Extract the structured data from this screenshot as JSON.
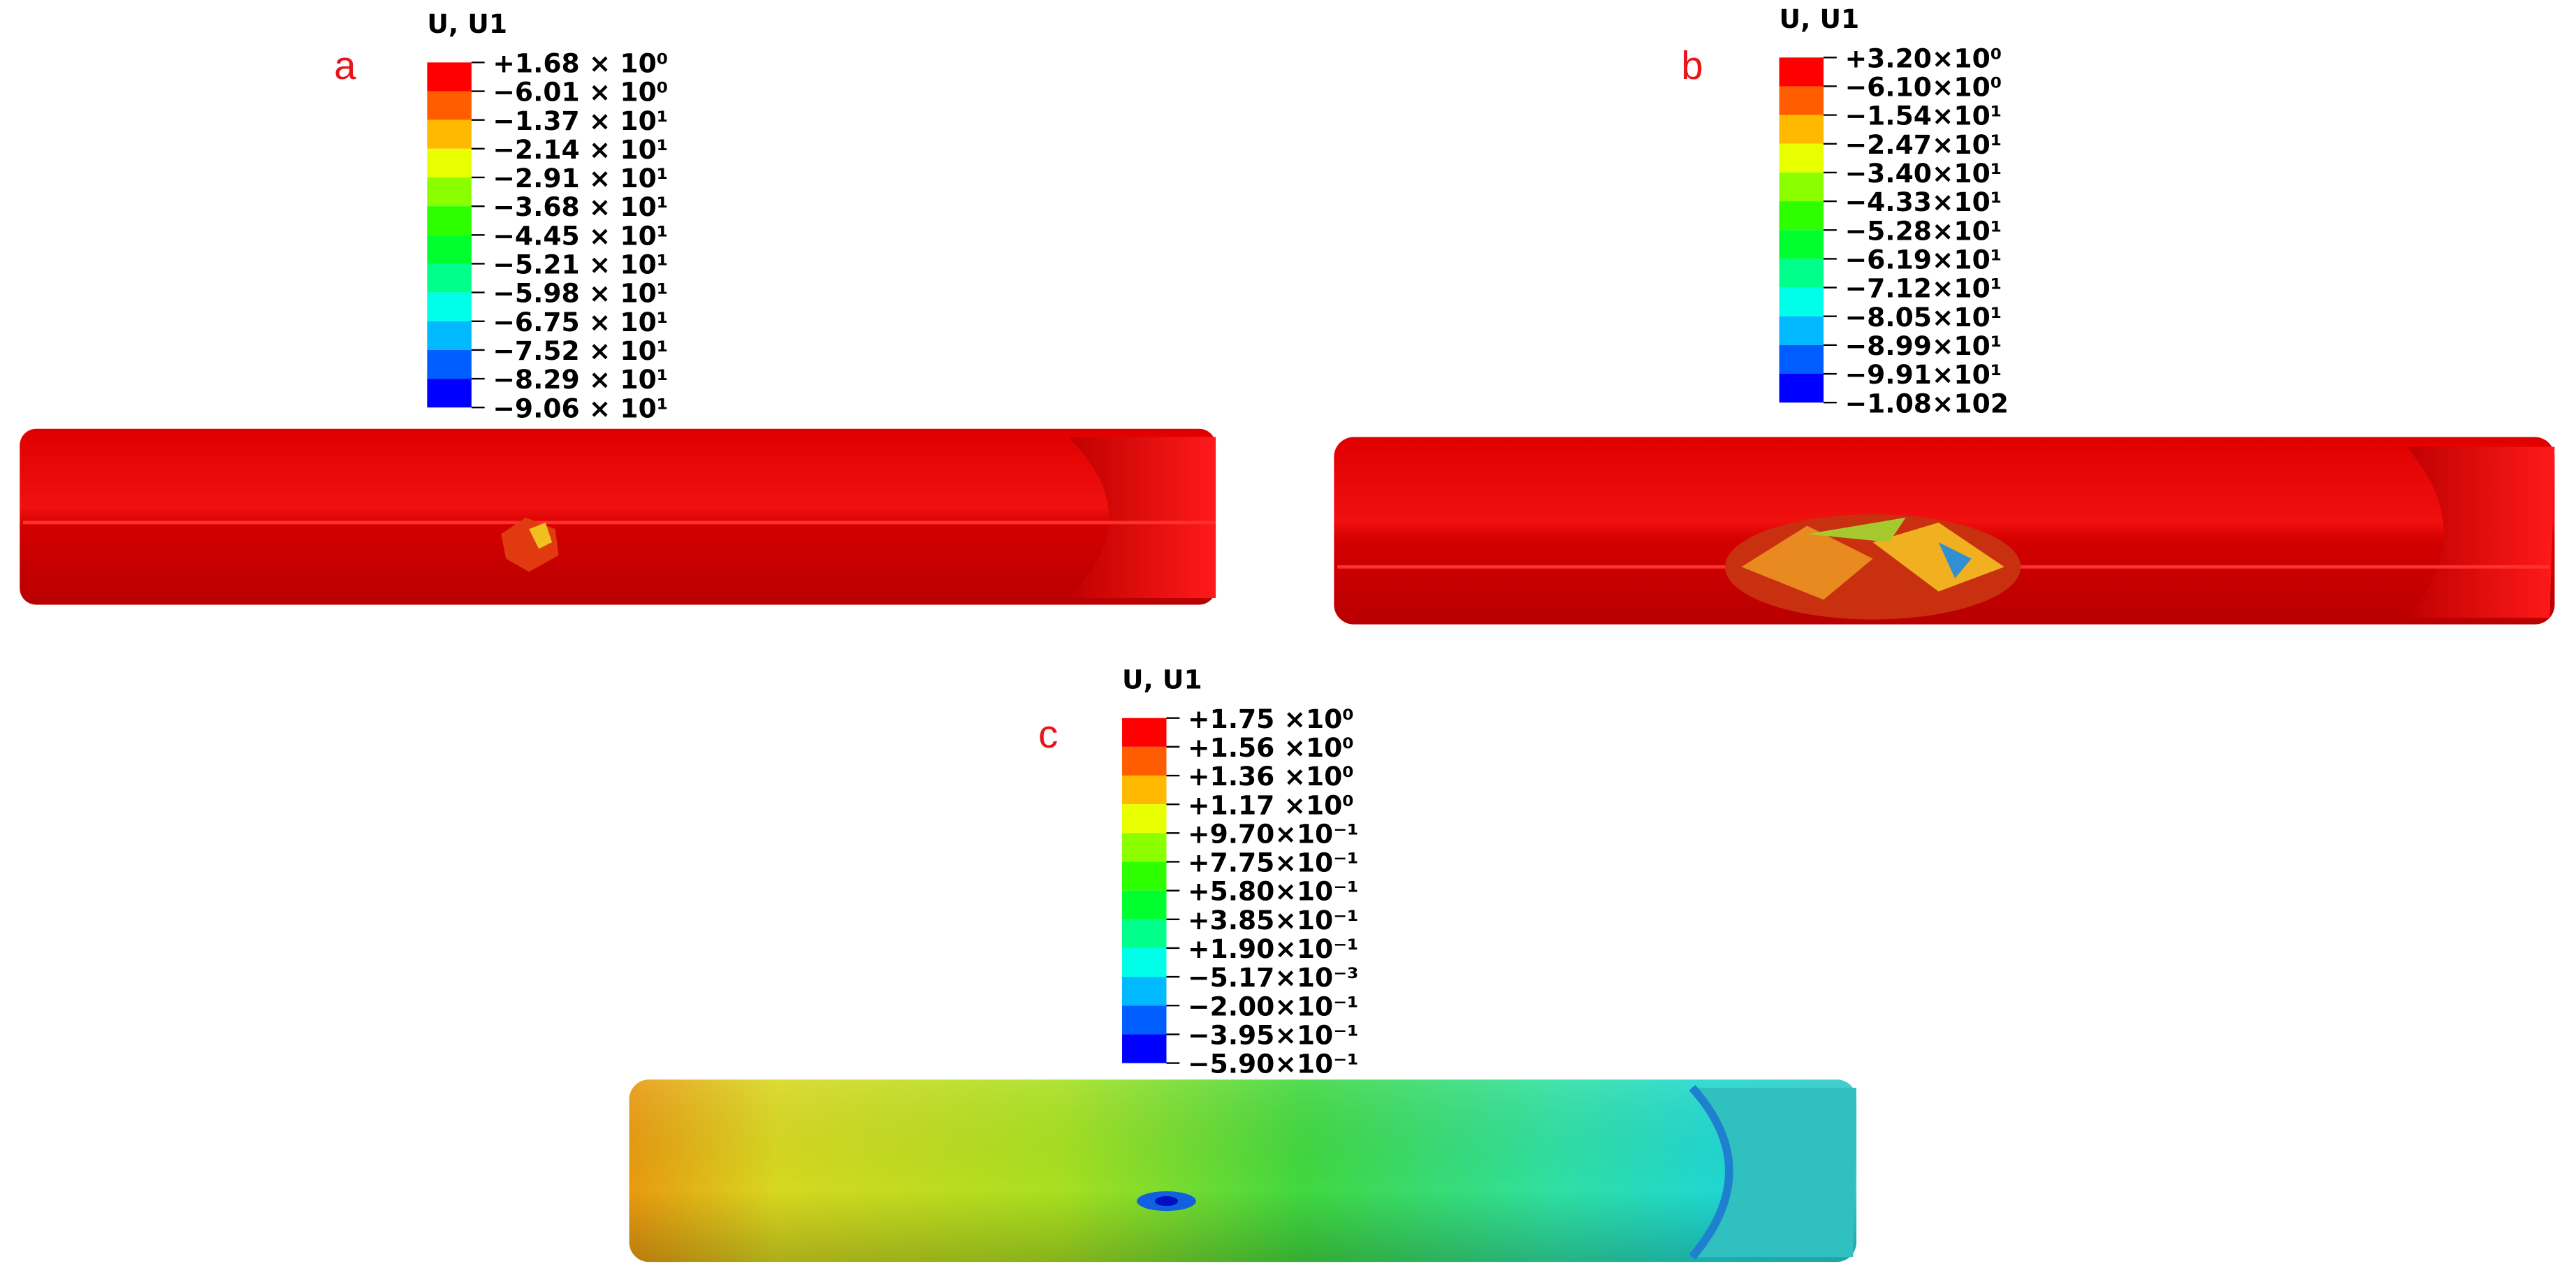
{
  "panels": [
    {
      "label": "a",
      "legend": {
        "title": "U, U1",
        "labels": [
          "+1.68 × 10⁰",
          "−6.01 × 10⁰",
          "−1.37 × 10¹",
          "−2.14 × 10¹",
          "−2.91 × 10¹",
          "−3.68 × 10¹",
          "−4.45 × 10¹",
          "−5.21 × 10¹",
          "−5.98 × 10¹",
          "−6.75 × 10¹",
          "−7.52 × 10¹",
          "−8.29 × 10¹",
          "−9.06 × 10¹"
        ]
      }
    },
    {
      "label": "b",
      "legend": {
        "title": "U, U1",
        "labels": [
          "+3.20×10⁰",
          "−6.10×10⁰",
          "−1.54×10¹",
          "−2.47×10¹",
          "−3.40×10¹",
          "−4.33×10¹",
          "−5.28×10¹",
          "−6.19×10¹",
          "−7.12×10¹",
          "−8.05×10¹",
          "−8.99×10¹",
          "−9.91×10¹",
          "−1.08×102"
        ]
      }
    },
    {
      "label": "c",
      "legend": {
        "title": "U, U1",
        "labels": [
          "+1.75 ×10⁰",
          "+1.56 ×10⁰",
          "+1.36 ×10⁰",
          "+1.17 ×10⁰",
          "+9.70×10⁻¹",
          "+7.75×10⁻¹",
          "+5.80×10⁻¹",
          "+3.85×10⁻¹",
          "+1.90×10⁻¹",
          "−5.17×10⁻³",
          "−2.00×10⁻¹",
          "−3.95×10⁻¹",
          "−5.90×10⁻¹"
        ]
      }
    }
  ]
}
